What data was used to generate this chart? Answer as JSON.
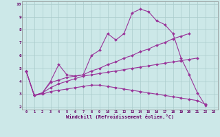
{
  "xlabel": "Windchill (Refroidissement éolien,°C)",
  "bg_color": "#cce8e8",
  "grid_color": "#aacccc",
  "line_color": "#993399",
  "spine_color": "#888888",
  "tick_color": "#660066",
  "xlim": [
    -0.5,
    23.5
  ],
  "ylim": [
    1.8,
    10.2
  ],
  "xticks": [
    0,
    1,
    2,
    3,
    4,
    5,
    6,
    7,
    8,
    9,
    10,
    11,
    12,
    13,
    14,
    15,
    16,
    17,
    18,
    19,
    20,
    21,
    22,
    23
  ],
  "yticks": [
    2,
    3,
    4,
    5,
    6,
    7,
    8,
    9,
    10
  ],
  "line1_x": [
    0,
    1,
    2,
    3,
    4,
    5,
    6,
    7,
    8,
    9,
    10,
    11,
    12,
    13,
    14,
    15,
    16,
    17,
    18,
    19,
    20,
    21,
    22
  ],
  "line1_y": [
    4.8,
    2.9,
    3.1,
    4.0,
    5.3,
    4.5,
    4.4,
    4.5,
    6.0,
    6.4,
    7.7,
    7.2,
    7.7,
    9.3,
    9.6,
    9.4,
    8.7,
    8.4,
    7.7,
    5.8,
    4.5,
    3.1,
    2.1
  ],
  "line2_x": [
    0,
    1,
    2,
    3,
    4,
    5,
    6,
    7,
    8,
    9,
    10,
    11,
    12,
    13,
    14,
    15,
    16,
    17,
    18,
    19,
    20
  ],
  "line2_y": [
    4.8,
    2.9,
    3.1,
    3.9,
    4.1,
    4.3,
    4.4,
    4.5,
    4.8,
    5.0,
    5.3,
    5.5,
    5.8,
    6.0,
    6.3,
    6.5,
    6.8,
    7.0,
    7.3,
    7.5,
    7.7
  ],
  "line3_x": [
    0,
    1,
    2,
    3,
    4,
    5,
    6,
    7,
    8,
    9,
    10,
    11,
    12,
    13,
    14,
    15,
    16,
    17,
    18,
    19,
    20,
    21
  ],
  "line3_y": [
    4.8,
    2.9,
    3.1,
    3.5,
    3.8,
    4.0,
    4.2,
    4.4,
    4.5,
    4.6,
    4.7,
    4.8,
    4.9,
    5.0,
    5.1,
    5.2,
    5.3,
    5.4,
    5.5,
    5.6,
    5.7,
    5.8
  ],
  "line4_x": [
    0,
    1,
    2,
    3,
    4,
    5,
    6,
    7,
    8,
    9,
    10,
    11,
    12,
    13,
    14,
    15,
    16,
    17,
    18,
    19,
    20,
    21,
    22
  ],
  "line4_y": [
    4.8,
    2.9,
    3.0,
    3.2,
    3.3,
    3.4,
    3.5,
    3.6,
    3.7,
    3.7,
    3.6,
    3.5,
    3.4,
    3.3,
    3.2,
    3.1,
    3.0,
    2.9,
    2.8,
    2.7,
    2.6,
    2.5,
    2.2
  ]
}
